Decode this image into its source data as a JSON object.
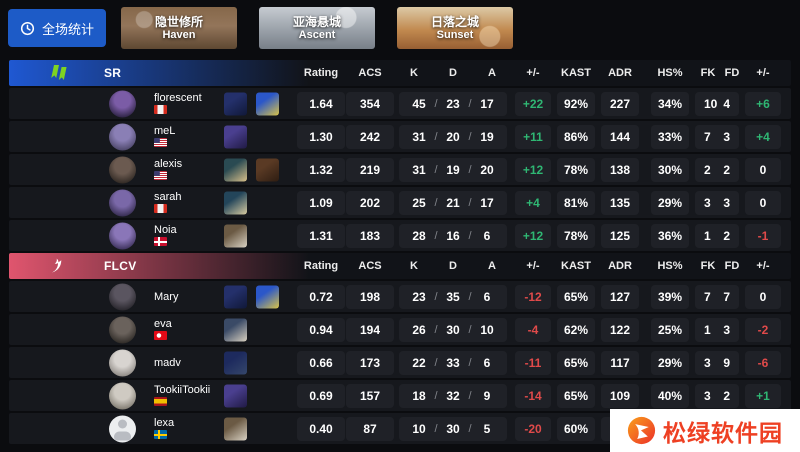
{
  "topbar": {
    "overall_label": "全场统计",
    "maps": [
      {
        "name_cn": "隐世修所",
        "name_en": "Haven"
      },
      {
        "name_cn": "亚海悬城",
        "name_en": "Ascent"
      },
      {
        "name_cn": "日落之城",
        "name_en": "Sunset"
      }
    ]
  },
  "columns": {
    "rating": "Rating",
    "acs": "ACS",
    "k": "K",
    "d": "D",
    "a": "A",
    "pm": "+/-",
    "kast": "KAST",
    "adr": "ADR",
    "hs": "HS%",
    "fk": "FK",
    "fd": "FD",
    "pm2": "+/-"
  },
  "kda_separator": "/",
  "colors": {
    "positive": "#2fb673",
    "negative": "#e04a4a",
    "button_blue": "#1d5bc7",
    "sr_accent": "#1f58d2",
    "flcv_accent": "#e0556e",
    "watermark_orange": "#ee4023"
  },
  "teams": [
    {
      "name": "SR",
      "accent": "#1f58d2",
      "players": [
        {
          "name": "florescent",
          "flag": "ca",
          "avatar": [
            "#7b5ca6",
            "#2a2140"
          ],
          "agents": [
            [
              "#24306b",
              "#101838"
            ],
            [
              "#2b57c9",
              "#d8c34a"
            ]
          ],
          "rating": "1.64",
          "acs": "354",
          "k": "45",
          "d": "23",
          "a": "17",
          "pm": "+22",
          "kast": "92%",
          "adr": "227",
          "hs": "34%",
          "fk": "10",
          "fd": "4",
          "pm2": "+6"
        },
        {
          "name": "meL",
          "flag": "us",
          "avatar": [
            "#8a7fb5",
            "#4a4466"
          ],
          "agents": [
            [
              "#4a3f8f",
              "#201a45"
            ]
          ],
          "rating": "1.30",
          "acs": "242",
          "k": "31",
          "d": "20",
          "a": "19",
          "pm": "+11",
          "kast": "86%",
          "adr": "144",
          "hs": "33%",
          "fk": "7",
          "fd": "3",
          "pm2": "+4"
        },
        {
          "name": "alexis",
          "flag": "us",
          "avatar": [
            "#6b5a50",
            "#2e2722"
          ],
          "agents": [
            [
              "#2a4a52",
              "#d9c08a"
            ],
            [
              "#5a3a24",
              "#2e1d12"
            ]
          ],
          "rating": "1.32",
          "acs": "219",
          "k": "31",
          "d": "19",
          "a": "20",
          "pm": "+12",
          "kast": "78%",
          "adr": "138",
          "hs": "30%",
          "fk": "2",
          "fd": "2",
          "pm2": "0"
        },
        {
          "name": "sarah",
          "flag": "ca",
          "avatar": [
            "#7a68a8",
            "#332a4d"
          ],
          "agents": [
            [
              "#23455a",
              "#d8cba0"
            ]
          ],
          "rating": "1.09",
          "acs": "202",
          "k": "25",
          "d": "21",
          "a": "17",
          "pm": "+4",
          "kast": "81%",
          "adr": "135",
          "hs": "29%",
          "fk": "3",
          "fd": "3",
          "pm2": "0"
        },
        {
          "name": "Noia",
          "flag": "dk",
          "avatar": [
            "#8a76b8",
            "#3a2f58"
          ],
          "agents": [
            [
              "#6b5a44",
              "#d9d2c4"
            ]
          ],
          "rating": "1.31",
          "acs": "183",
          "k": "28",
          "d": "16",
          "a": "6",
          "pm": "+12",
          "kast": "78%",
          "adr": "125",
          "hs": "36%",
          "fk": "1",
          "fd": "2",
          "pm2": "-1"
        }
      ]
    },
    {
      "name": "FLCV",
      "accent": "#e0556e",
      "players": [
        {
          "name": "Mary",
          "flag": null,
          "avatar": [
            "#5a5560",
            "#26242a"
          ],
          "agents": [
            [
              "#24306b",
              "#101838"
            ],
            [
              "#2b57c9",
              "#d8c34a"
            ]
          ],
          "rating": "0.72",
          "acs": "198",
          "k": "23",
          "d": "35",
          "a": "6",
          "pm": "-12",
          "kast": "65%",
          "adr": "127",
          "hs": "39%",
          "fk": "7",
          "fd": "7",
          "pm2": "0"
        },
        {
          "name": "eva",
          "flag": "tr",
          "avatar": [
            "#6a625c",
            "#2c2824"
          ],
          "agents": [
            [
              "#3a4a66",
              "#d8d0c0"
            ]
          ],
          "rating": "0.94",
          "acs": "194",
          "k": "26",
          "d": "30",
          "a": "10",
          "pm": "-4",
          "kast": "62%",
          "adr": "122",
          "hs": "25%",
          "fk": "1",
          "fd": "3",
          "pm2": "-2"
        },
        {
          "name": "madv",
          "flag": null,
          "avatar": [
            "#d8d4d0",
            "#8a8580"
          ],
          "agents": [
            [
              "#1d2a5e",
              "#35476b"
            ]
          ],
          "rating": "0.66",
          "acs": "173",
          "k": "22",
          "d": "33",
          "a": "6",
          "pm": "-11",
          "kast": "65%",
          "adr": "117",
          "hs": "29%",
          "fk": "3",
          "fd": "9",
          "pm2": "-6"
        },
        {
          "name": "TookiiTookii",
          "flag": "es",
          "avatar": [
            "#cfcac2",
            "#7d786e"
          ],
          "agents": [
            [
              "#4a3f8f",
              "#201a45"
            ]
          ],
          "rating": "0.69",
          "acs": "157",
          "k": "18",
          "d": "32",
          "a": "9",
          "pm": "-14",
          "kast": "65%",
          "adr": "109",
          "hs": "40%",
          "fk": "3",
          "fd": "2",
          "pm2": "+1"
        },
        {
          "name": "lexa",
          "flag": "se",
          "avatar": "default",
          "agents": [
            [
              "#6b5a44",
              "#d9d2c4"
            ]
          ],
          "rating": "0.40",
          "acs": "87",
          "k": "10",
          "d": "30",
          "a": "5",
          "pm": "-20",
          "kast": "60%",
          "adr": "",
          "hs": null,
          "fk": null,
          "fd": null,
          "pm2": null
        }
      ]
    }
  ],
  "watermark": {
    "text": "松绿软件园"
  }
}
